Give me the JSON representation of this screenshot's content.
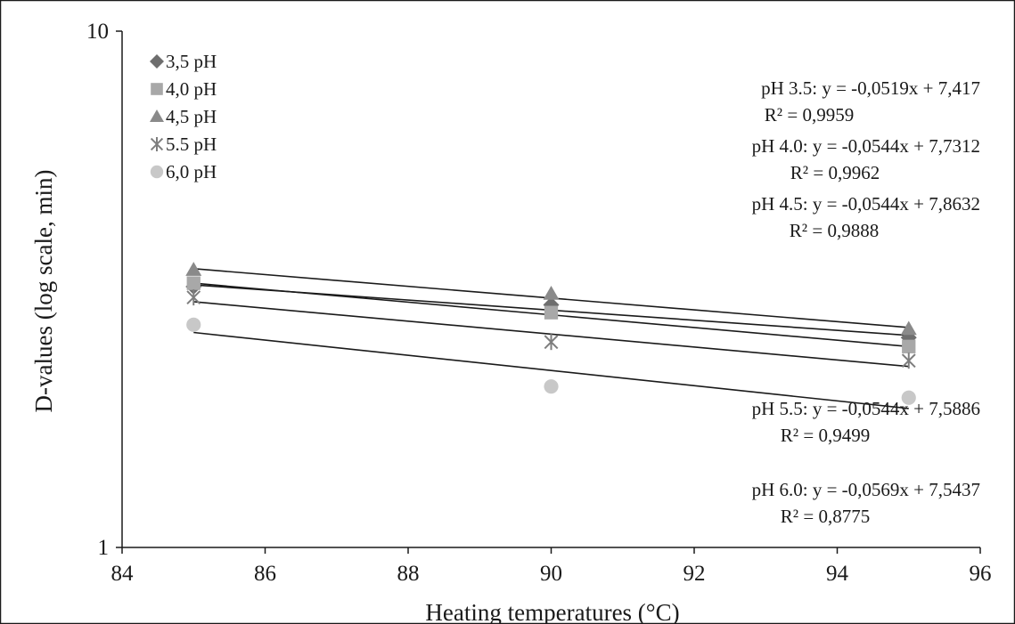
{
  "chart_data": {
    "type": "scatter",
    "title": "",
    "xlabel": "Heating temperatures (°C)",
    "ylabel": "D-values (log scale, min)",
    "xlim": [
      84,
      96
    ],
    "ylim": [
      1,
      10
    ],
    "yscale": "log",
    "x_ticks": [
      "84",
      "86",
      "88",
      "90",
      "92",
      "94",
      "96"
    ],
    "y_ticks": [
      "1",
      "10"
    ],
    "grid": false,
    "legend_position": "top-left",
    "series": [
      {
        "name": "3,5 pH",
        "marker": "diamond",
        "color": "#6e6e6e",
        "x": [
          85,
          90,
          95
        ],
        "y": [
          3.2,
          2.95,
          2.55
        ],
        "trend": {
          "m": -0.0519,
          "b": 7.417
        }
      },
      {
        "name": "4,0 pH",
        "marker": "square",
        "color": "#a8a8a8",
        "x": [
          85,
          90,
          95
        ],
        "y": [
          3.25,
          2.85,
          2.45
        ],
        "trend": {
          "m": -0.0544,
          "b": 7.7312
        }
      },
      {
        "name": "4,5 pH",
        "marker": "triangle",
        "color": "#8a8a8a",
        "x": [
          85,
          90,
          95
        ],
        "y": [
          3.45,
          3.1,
          2.65
        ],
        "trend": {
          "m": -0.0544,
          "b": 7.8632
        }
      },
      {
        "name": "5.5 pH",
        "marker": "star",
        "color": "#7e7e7e",
        "x": [
          85,
          90,
          95
        ],
        "y": [
          3.05,
          2.5,
          2.3
        ],
        "trend": {
          "m": -0.0544,
          "b": 7.5886
        }
      },
      {
        "name": "6,0 pH",
        "marker": "circle",
        "color": "#c8c8c8",
        "x": [
          85,
          90,
          95
        ],
        "y": [
          2.7,
          2.05,
          1.95
        ],
        "trend": {
          "m": -0.0569,
          "b": 7.5437
        }
      }
    ],
    "annotations": [
      {
        "lines": [
          "pH 3.5: y = -0,0519x + 7,417",
          "R² = 0,9959"
        ]
      },
      {
        "lines": [
          "pH 4.0: y = -0,0544x + 7,7312",
          "R² = 0,9962"
        ]
      },
      {
        "lines": [
          "pH 4.5: y = -0,0544x + 7,8632",
          "R² = 0,9888"
        ]
      },
      {
        "lines": [
          "pH 5.5: y = -0,0544x + 7,5886",
          "R² = 0,9499"
        ]
      },
      {
        "lines": [
          "pH 6.0: y = -0,0569x + 7,5437",
          "R² = 0,8775"
        ]
      }
    ]
  }
}
